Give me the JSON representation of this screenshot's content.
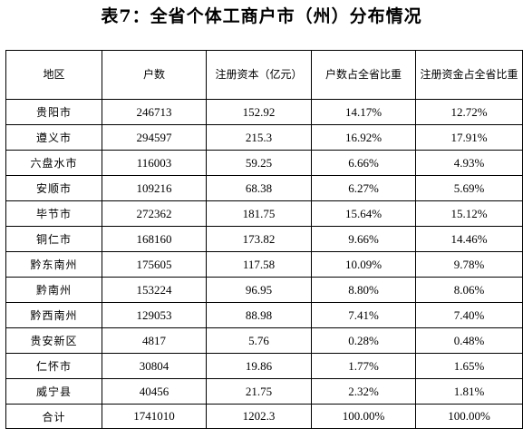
{
  "title": "表7：全省个体工商户市（州）分布情况",
  "table": {
    "headers": [
      "地区",
      "户数",
      "注册资本（亿元）",
      "户数占全省比重",
      "注册资金占全省比重"
    ],
    "rows": [
      [
        "贵阳市",
        "246713",
        "152.92",
        "14.17%",
        "12.72%"
      ],
      [
        "遵义市",
        "294597",
        "215.3",
        "16.92%",
        "17.91%"
      ],
      [
        "六盘水市",
        "116003",
        "59.25",
        "6.66%",
        "4.93%"
      ],
      [
        "安顺市",
        "109216",
        "68.38",
        "6.27%",
        "5.69%"
      ],
      [
        "毕节市",
        "272362",
        "181.75",
        "15.64%",
        "15.12%"
      ],
      [
        "铜仁市",
        "168160",
        "173.82",
        "9.66%",
        "14.46%"
      ],
      [
        "黔东南州",
        "175605",
        "117.58",
        "10.09%",
        "9.78%"
      ],
      [
        "黔南州",
        "153224",
        "96.95",
        "8.80%",
        "8.06%"
      ],
      [
        "黔西南州",
        "129053",
        "88.98",
        "7.41%",
        "7.40%"
      ],
      [
        "贵安新区",
        "4817",
        "5.76",
        "0.28%",
        "0.48%"
      ],
      [
        "仁怀市",
        "30804",
        "19.86",
        "1.77%",
        "1.65%"
      ],
      [
        "威宁县",
        "40456",
        "21.75",
        "2.32%",
        "1.81%"
      ],
      [
        "合计",
        "1741010",
        "1202.3",
        "100.00%",
        "100.00%"
      ]
    ]
  }
}
